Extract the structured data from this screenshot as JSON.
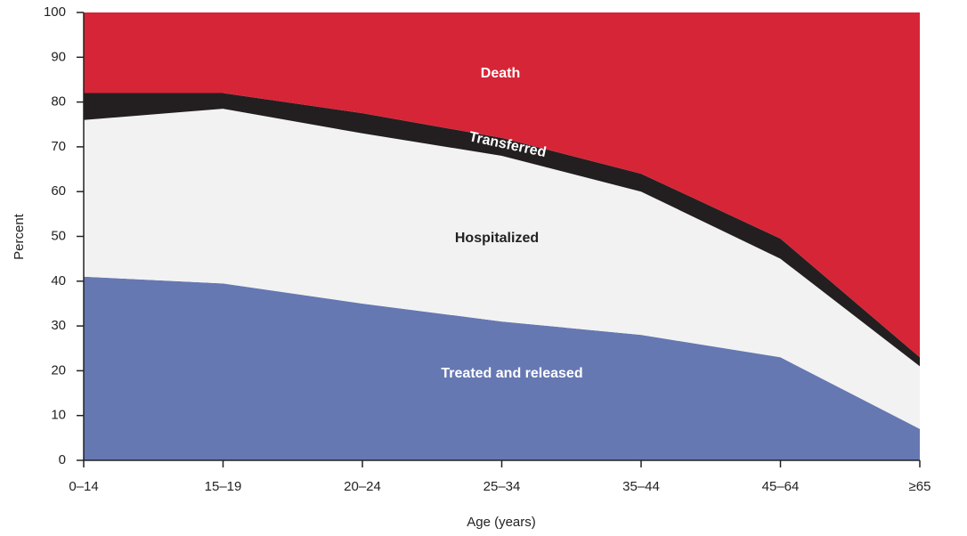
{
  "chart_data": {
    "type": "stacked_area",
    "x_label": "Age (years)",
    "y_label": "Percent",
    "categories": [
      "0–14",
      "15–19",
      "20–24",
      "25–34",
      "35–44",
      "45–64",
      "≥65"
    ],
    "series": [
      {
        "name": "Treated and released",
        "color": "#6678b2",
        "values": [
          41,
          39.5,
          35,
          31,
          28,
          23,
          7
        ]
      },
      {
        "name": "Hospitalized",
        "color": "#f2f2f2",
        "values": [
          35,
          39,
          38,
          37,
          32,
          22,
          14
        ]
      },
      {
        "name": "Transferred",
        "color": "#231f20",
        "values": [
          6,
          3.5,
          4.5,
          4,
          4,
          4.5,
          2
        ]
      },
      {
        "name": "Death",
        "color": "#d62537",
        "values": [
          18,
          18,
          22.5,
          28,
          36,
          50.5,
          77
        ]
      }
    ],
    "ylim": [
      0,
      100
    ],
    "yticks": [
      0,
      10,
      20,
      30,
      40,
      50,
      60,
      70,
      80,
      90,
      100
    ]
  }
}
